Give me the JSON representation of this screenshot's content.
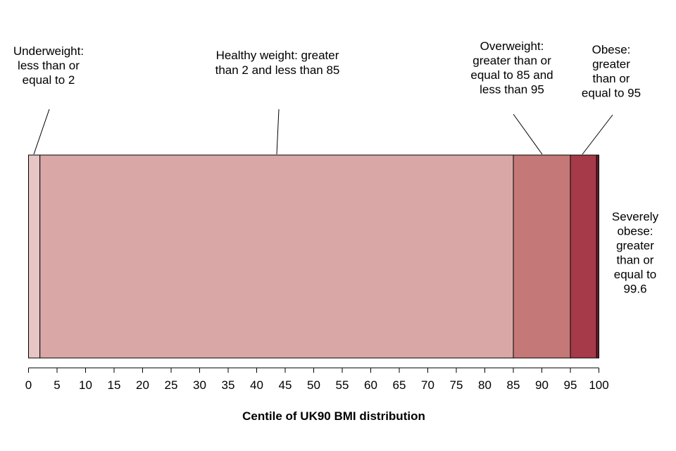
{
  "chart_data": {
    "type": "bar",
    "orientation": "horizontal-stacked",
    "title": "",
    "xlabel": "Centile of UK90 BMI distribution",
    "ylabel": "",
    "xlim": [
      0,
      100
    ],
    "ticks": [
      0,
      5,
      10,
      15,
      20,
      25,
      30,
      35,
      40,
      45,
      50,
      55,
      60,
      65,
      70,
      75,
      80,
      85,
      90,
      95,
      100
    ],
    "segments": [
      {
        "name": "Underweight",
        "from": 0,
        "to": 2,
        "color": "#e8c5c5",
        "label_lines": [
          "Underweight:",
          "less than  or",
          "equal to 2"
        ]
      },
      {
        "name": "Healthy weight",
        "from": 2,
        "to": 85,
        "color": "#d9a8a6",
        "label_lines": [
          "Healthy weight: greater",
          "than 2 and less than 85"
        ]
      },
      {
        "name": "Overweight",
        "from": 85,
        "to": 95,
        "color": "#c47877",
        "label_lines": [
          "Overweight:",
          "greater than  or",
          "equal to 85 and",
          "less than 95"
        ]
      },
      {
        "name": "Obese",
        "from": 95,
        "to": 99.6,
        "color": "#a63a48",
        "label_lines": [
          "Obese:",
          "greater",
          "than  or",
          "equal to 95"
        ]
      },
      {
        "name": "Severely obese",
        "from": 99.6,
        "to": 100,
        "color": "#6e1f2b",
        "label_lines": [
          "Severely",
          "obese:",
          "greater",
          "than  or",
          "equal to",
          "99.6"
        ]
      }
    ]
  }
}
